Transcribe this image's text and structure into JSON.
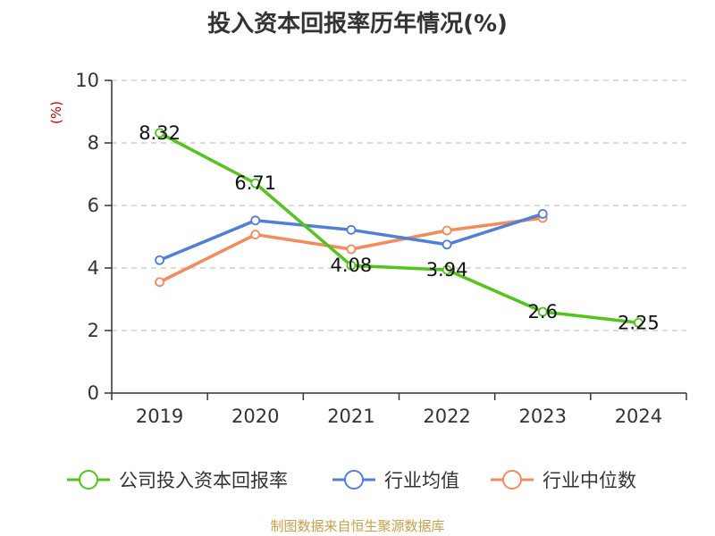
{
  "chart_data": {
    "type": "line",
    "title": "投入资本回报率历年情况(%)",
    "ylabel": "(%)",
    "xlabel": "",
    "categories": [
      "2019",
      "2020",
      "2021",
      "2022",
      "2023",
      "2024"
    ],
    "ylim": [
      0,
      10
    ],
    "yticks": [
      0,
      2,
      4,
      6,
      8,
      10
    ],
    "grid": true,
    "legend_position": "bottom",
    "series": [
      {
        "name": "公司投入资本回报率",
        "color": "#52c41a",
        "values": [
          8.32,
          6.71,
          4.08,
          3.94,
          2.6,
          2.25
        ],
        "labels": [
          "8.32",
          "6.71",
          "4.08",
          "3.94",
          "2.6",
          "2.25"
        ]
      },
      {
        "name": "行业均值",
        "color": "#4f7fd8",
        "values": [
          4.25,
          5.52,
          5.22,
          4.75,
          5.73,
          null
        ]
      },
      {
        "name": "行业中位数",
        "color": "#f58a5b",
        "values": [
          3.55,
          5.07,
          4.6,
          5.2,
          5.6,
          null
        ]
      }
    ]
  },
  "source": "制图数据来自恒生聚源数据库"
}
